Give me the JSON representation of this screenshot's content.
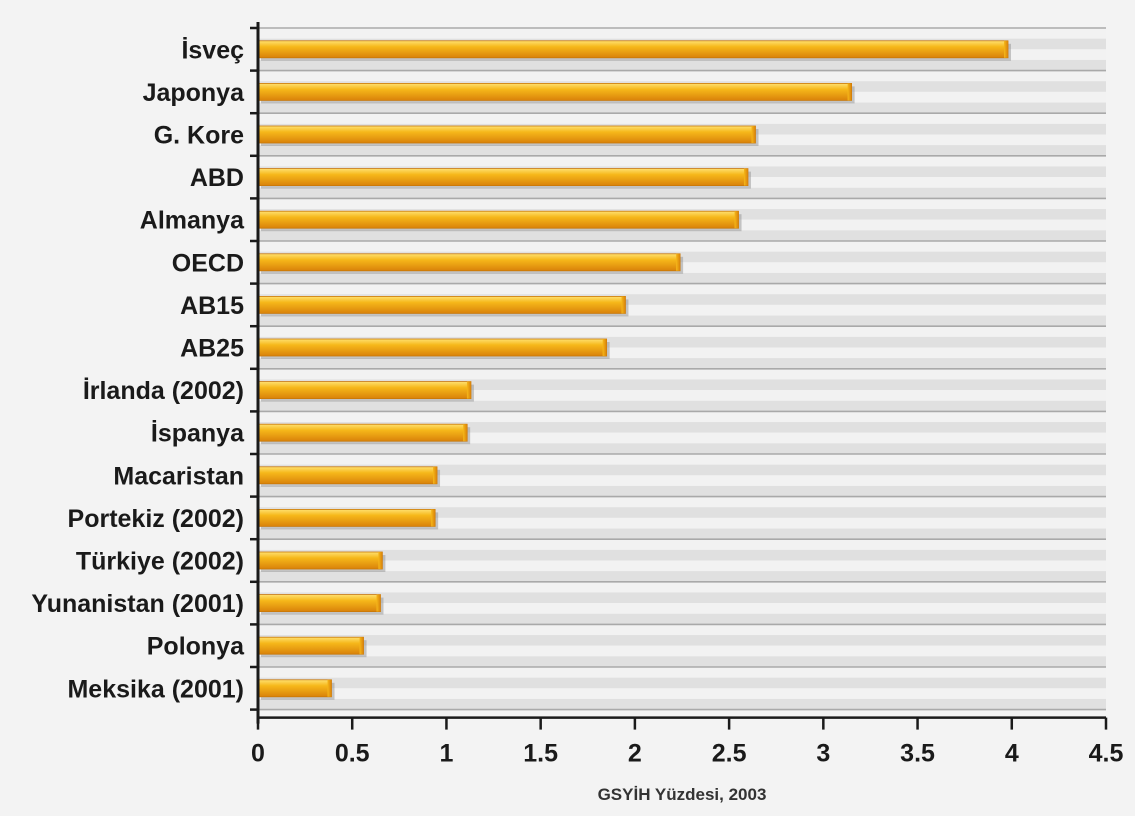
{
  "chart_data": {
    "type": "bar",
    "orientation": "horizontal",
    "title": "",
    "xlabel": "GSYİH Yüzdesi, 2003",
    "ylabel": "",
    "categories": [
      "İsveç",
      "Japonya",
      "G. Kore",
      "ABD",
      "Almanya",
      "OECD",
      "AB15",
      "AB25",
      "İrlanda (2002)",
      "İspanya",
      "Macaristan",
      "Portekiz (2002)",
      "Türkiye (2002)",
      "Yunanistan (2001)",
      "Polonya",
      "Meksika (2001)"
    ],
    "values": [
      3.98,
      3.15,
      2.64,
      2.6,
      2.55,
      2.24,
      1.95,
      1.85,
      1.13,
      1.11,
      0.95,
      0.94,
      0.66,
      0.65,
      0.56,
      0.39
    ],
    "xlim": [
      0,
      4.5
    ],
    "xticks": [
      "0",
      "0.5",
      "1",
      "1.5",
      "2",
      "2.5",
      "3",
      "3.5",
      "4",
      "4.5"
    ],
    "grid": true,
    "legend": "none",
    "colors": {
      "bar_light": "#ffe070",
      "bar_mid": "#f6b81a",
      "bar_dark": "#d9820a",
      "band_light": "#f2f2f2",
      "band_dark": "#e0e0e0",
      "grid_line": "#a9a9a9",
      "axis": "#1a1a1a",
      "text": "#1a1a1a"
    }
  }
}
